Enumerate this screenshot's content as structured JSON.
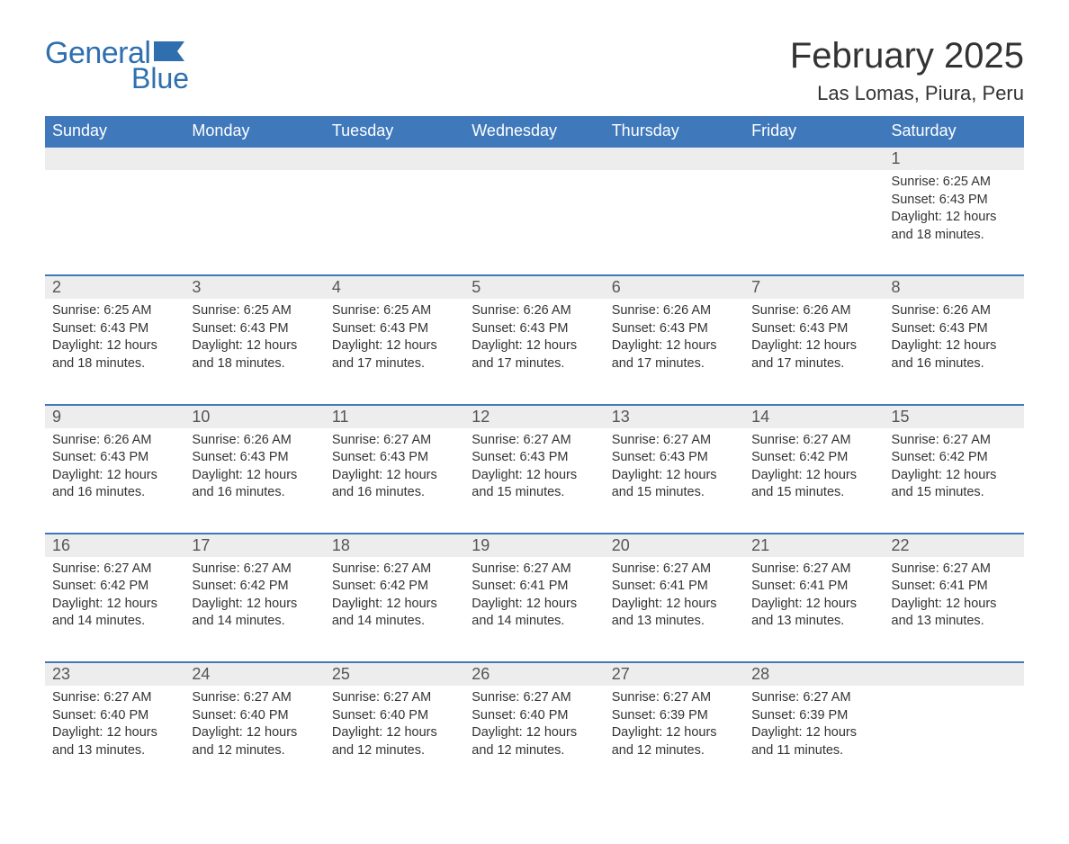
{
  "brand": {
    "word1": "General",
    "word2": "Blue",
    "color": "#2f6faf"
  },
  "title": "February 2025",
  "location": "Las Lomas, Piura, Peru",
  "colors": {
    "header_bg": "#3f79bb",
    "stripe_bg": "#ededed",
    "text": "#333333",
    "background": "#ffffff",
    "rule": "#3f79bb"
  },
  "fonts": {
    "title_pt": 40,
    "location_pt": 22,
    "dayhead_pt": 18,
    "daynum_pt": 18,
    "body_pt": 14.5
  },
  "day_headers": [
    "Sunday",
    "Monday",
    "Tuesday",
    "Wednesday",
    "Thursday",
    "Friday",
    "Saturday"
  ],
  "labels": {
    "sunrise": "Sunrise:",
    "sunset": "Sunset:",
    "daylight": "Daylight:"
  },
  "weeks": [
    [
      null,
      null,
      null,
      null,
      null,
      null,
      {
        "day": "1",
        "sunrise": "6:25 AM",
        "sunset": "6:43 PM",
        "daylight": "12 hours and 18 minutes."
      }
    ],
    [
      {
        "day": "2",
        "sunrise": "6:25 AM",
        "sunset": "6:43 PM",
        "daylight": "12 hours and 18 minutes."
      },
      {
        "day": "3",
        "sunrise": "6:25 AM",
        "sunset": "6:43 PM",
        "daylight": "12 hours and 18 minutes."
      },
      {
        "day": "4",
        "sunrise": "6:25 AM",
        "sunset": "6:43 PM",
        "daylight": "12 hours and 17 minutes."
      },
      {
        "day": "5",
        "sunrise": "6:26 AM",
        "sunset": "6:43 PM",
        "daylight": "12 hours and 17 minutes."
      },
      {
        "day": "6",
        "sunrise": "6:26 AM",
        "sunset": "6:43 PM",
        "daylight": "12 hours and 17 minutes."
      },
      {
        "day": "7",
        "sunrise": "6:26 AM",
        "sunset": "6:43 PM",
        "daylight": "12 hours and 17 minutes."
      },
      {
        "day": "8",
        "sunrise": "6:26 AM",
        "sunset": "6:43 PM",
        "daylight": "12 hours and 16 minutes."
      }
    ],
    [
      {
        "day": "9",
        "sunrise": "6:26 AM",
        "sunset": "6:43 PM",
        "daylight": "12 hours and 16 minutes."
      },
      {
        "day": "10",
        "sunrise": "6:26 AM",
        "sunset": "6:43 PM",
        "daylight": "12 hours and 16 minutes."
      },
      {
        "day": "11",
        "sunrise": "6:27 AM",
        "sunset": "6:43 PM",
        "daylight": "12 hours and 16 minutes."
      },
      {
        "day": "12",
        "sunrise": "6:27 AM",
        "sunset": "6:43 PM",
        "daylight": "12 hours and 15 minutes."
      },
      {
        "day": "13",
        "sunrise": "6:27 AM",
        "sunset": "6:43 PM",
        "daylight": "12 hours and 15 minutes."
      },
      {
        "day": "14",
        "sunrise": "6:27 AM",
        "sunset": "6:42 PM",
        "daylight": "12 hours and 15 minutes."
      },
      {
        "day": "15",
        "sunrise": "6:27 AM",
        "sunset": "6:42 PM",
        "daylight": "12 hours and 15 minutes."
      }
    ],
    [
      {
        "day": "16",
        "sunrise": "6:27 AM",
        "sunset": "6:42 PM",
        "daylight": "12 hours and 14 minutes."
      },
      {
        "day": "17",
        "sunrise": "6:27 AM",
        "sunset": "6:42 PM",
        "daylight": "12 hours and 14 minutes."
      },
      {
        "day": "18",
        "sunrise": "6:27 AM",
        "sunset": "6:42 PM",
        "daylight": "12 hours and 14 minutes."
      },
      {
        "day": "19",
        "sunrise": "6:27 AM",
        "sunset": "6:41 PM",
        "daylight": "12 hours and 14 minutes."
      },
      {
        "day": "20",
        "sunrise": "6:27 AM",
        "sunset": "6:41 PM",
        "daylight": "12 hours and 13 minutes."
      },
      {
        "day": "21",
        "sunrise": "6:27 AM",
        "sunset": "6:41 PM",
        "daylight": "12 hours and 13 minutes."
      },
      {
        "day": "22",
        "sunrise": "6:27 AM",
        "sunset": "6:41 PM",
        "daylight": "12 hours and 13 minutes."
      }
    ],
    [
      {
        "day": "23",
        "sunrise": "6:27 AM",
        "sunset": "6:40 PM",
        "daylight": "12 hours and 13 minutes."
      },
      {
        "day": "24",
        "sunrise": "6:27 AM",
        "sunset": "6:40 PM",
        "daylight": "12 hours and 12 minutes."
      },
      {
        "day": "25",
        "sunrise": "6:27 AM",
        "sunset": "6:40 PM",
        "daylight": "12 hours and 12 minutes."
      },
      {
        "day": "26",
        "sunrise": "6:27 AM",
        "sunset": "6:40 PM",
        "daylight": "12 hours and 12 minutes."
      },
      {
        "day": "27",
        "sunrise": "6:27 AM",
        "sunset": "6:39 PM",
        "daylight": "12 hours and 12 minutes."
      },
      {
        "day": "28",
        "sunrise": "6:27 AM",
        "sunset": "6:39 PM",
        "daylight": "12 hours and 11 minutes."
      },
      null
    ]
  ]
}
